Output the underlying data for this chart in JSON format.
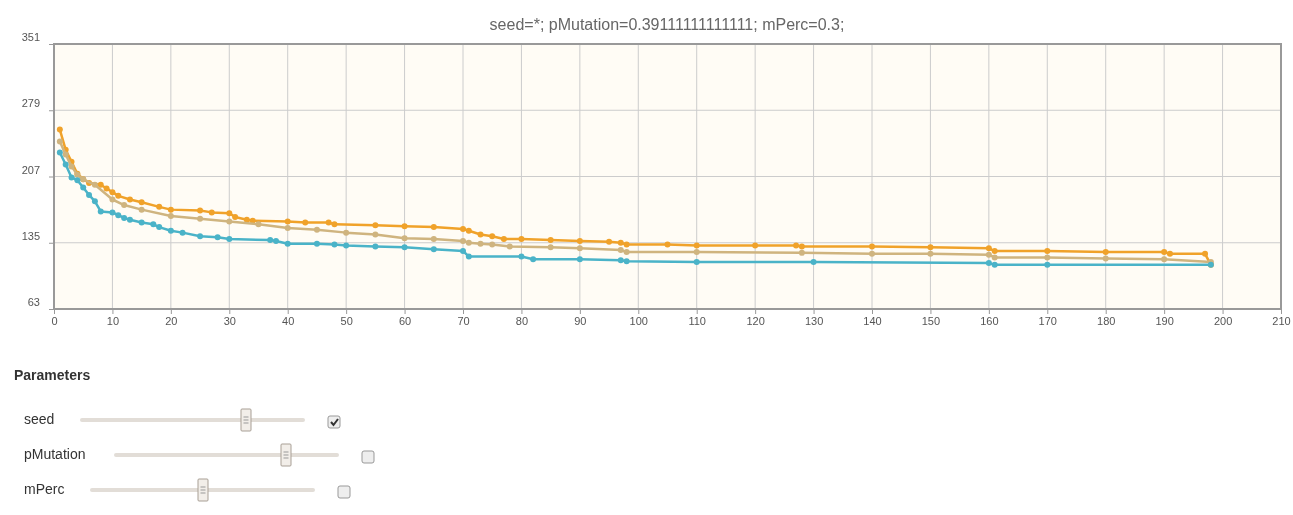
{
  "chart_data": {
    "type": "line",
    "title": "seed=*; pMutation=0.39111111111111; mPerc=0.3;",
    "xlim": [
      0,
      210
    ],
    "xticks": [
      0,
      10,
      20,
      30,
      40,
      50,
      60,
      70,
      80,
      90,
      100,
      110,
      120,
      130,
      140,
      150,
      160,
      170,
      180,
      190,
      200,
      210
    ],
    "ylim": [
      63,
      351
    ],
    "yticks": [
      63,
      135,
      207,
      279,
      351
    ],
    "grid": true,
    "marker": "circle",
    "line_style": "solid",
    "series": [
      {
        "color": "#f0a22a",
        "x": [
          1,
          2,
          3,
          4,
          5,
          6,
          8,
          9,
          10,
          11,
          13,
          15,
          18,
          20,
          25,
          27,
          30,
          31,
          33,
          34,
          40,
          43,
          47,
          48,
          55,
          60,
          65,
          70,
          71,
          73,
          75,
          77,
          80,
          85,
          90,
          95,
          97,
          98,
          105,
          110,
          120,
          127,
          128,
          140,
          150,
          160,
          161,
          170,
          180,
          190,
          191,
          197,
          198
        ],
        "values": [
          258,
          236,
          223,
          210,
          204,
          200,
          198,
          194,
          190,
          186,
          182,
          179,
          174,
          171,
          170,
          168,
          167,
          163,
          160,
          159,
          158,
          157,
          157,
          155,
          154,
          153,
          152,
          150,
          148,
          144,
          142,
          139,
          139,
          138,
          137,
          136,
          135,
          133,
          133,
          132,
          132,
          132,
          131,
          131,
          130,
          129,
          126,
          126,
          125,
          125,
          123,
          123,
          111
        ]
      },
      {
        "color": "#cfb47f",
        "x": [
          1,
          2,
          3,
          4,
          5,
          7,
          10,
          12,
          15,
          20,
          25,
          30,
          35,
          40,
          45,
          50,
          55,
          60,
          65,
          70,
          71,
          73,
          75,
          78,
          85,
          90,
          97,
          98,
          110,
          128,
          140,
          150,
          160,
          161,
          170,
          180,
          190,
          198
        ],
        "values": [
          245,
          231,
          218,
          209,
          204,
          198,
          182,
          176,
          171,
          164,
          161,
          158,
          155,
          151,
          149,
          146,
          144,
          140,
          139,
          137,
          135,
          134,
          133,
          131,
          130,
          129,
          127,
          125,
          125,
          124,
          123,
          123,
          122,
          119,
          119,
          118,
          117,
          114
        ]
      },
      {
        "color": "#4ab3c8",
        "x": [
          1,
          2,
          3,
          4,
          5,
          6,
          7,
          8,
          10,
          11,
          12,
          13,
          15,
          17,
          18,
          20,
          22,
          25,
          28,
          30,
          37,
          38,
          40,
          45,
          48,
          50,
          55,
          60,
          65,
          70,
          71,
          80,
          82,
          90,
          97,
          98,
          110,
          130,
          160,
          161,
          170,
          198
        ],
        "values": [
          233,
          220,
          206,
          203,
          195,
          187,
          180,
          169,
          168,
          165,
          162,
          160,
          157,
          155,
          152,
          148,
          146,
          142,
          141,
          139,
          138,
          137,
          134,
          134,
          133,
          132,
          131,
          130,
          128,
          126,
          120,
          120,
          117,
          117,
          116,
          115,
          114,
          114,
          113,
          111,
          111,
          111
        ]
      }
    ],
    "annotations": [
      "Parameters",
      "seed",
      "pMutation",
      "mPerc"
    ]
  }
}
